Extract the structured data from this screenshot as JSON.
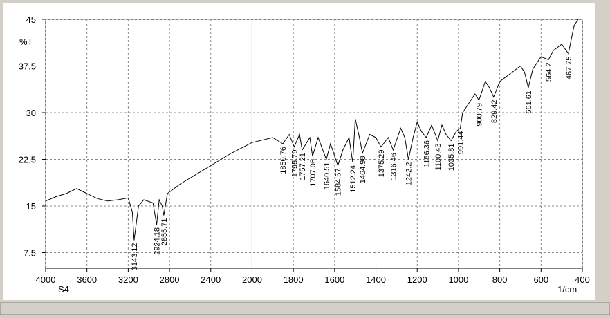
{
  "chart_data": {
    "type": "line",
    "sample": "S4",
    "y_label": "%T",
    "x_label": "1/cm",
    "color": "#000000",
    "grid": true,
    "x_reversed": true,
    "x_break": 2000,
    "xlim": [
      4000,
      400
    ],
    "ylim": [
      5,
      45
    ],
    "xticks": [
      4000,
      3600,
      3200,
      2800,
      2400,
      2000,
      1800,
      1600,
      1400,
      1200,
      1000,
      800,
      600,
      400
    ],
    "yticks": [
      7.5,
      15,
      22.5,
      30,
      37.5,
      45
    ],
    "x": [
      4000,
      3900,
      3800,
      3700,
      3600,
      3500,
      3400,
      3300,
      3200,
      3160,
      3143.12,
      3100,
      3050,
      2960,
      2924.18,
      2900,
      2870,
      2855.71,
      2820,
      2700,
      2600,
      2400,
      2200,
      2000,
      1900,
      1850.76,
      1820,
      1795.79,
      1770,
      1757.21,
      1720,
      1707.06,
      1680,
      1640.51,
      1620,
      1584.57,
      1560,
      1530,
      1512.24,
      1500,
      1480,
      1464.98,
      1430,
      1400,
      1375.29,
      1340,
      1316.46,
      1280,
      1260,
      1242.2,
      1220,
      1200,
      1180,
      1156.36,
      1130,
      1100.43,
      1080,
      1060,
      1035.81,
      1010,
      991.44,
      980,
      950,
      920,
      900.79,
      870,
      850,
      829.42,
      800,
      760,
      700,
      680,
      661.61,
      640,
      600,
      564.2,
      540,
      500,
      467.75,
      440,
      420
    ],
    "values": [
      15.8,
      16.5,
      17,
      17.8,
      17,
      16.2,
      15.8,
      16,
      16.3,
      14,
      9.5,
      15,
      16,
      15.5,
      12,
      16,
      15,
      13.5,
      17,
      18.5,
      19.5,
      21.5,
      23.5,
      25.2,
      26,
      25,
      26.5,
      24.5,
      26.5,
      24,
      26,
      23,
      26,
      22.5,
      25,
      21.5,
      24,
      26,
      22,
      29,
      26,
      23.5,
      26.5,
      26,
      24.5,
      26,
      24,
      27.5,
      26,
      22.5,
      26,
      28.5,
      27,
      26,
      28,
      25.5,
      28,
      26.5,
      25.5,
      27,
      27.5,
      30,
      31.5,
      33,
      32,
      35,
      34,
      32.5,
      35,
      36,
      37.5,
      36.5,
      34,
      37,
      39,
      38.5,
      40,
      41,
      39.5,
      44,
      45
    ],
    "peaks": [
      3143.12,
      2924.18,
      2855.71,
      1850.76,
      1795.79,
      1757.21,
      1707.06,
      1640.51,
      1584.57,
      1512.24,
      1464.98,
      1375.29,
      1316.46,
      1242.2,
      1156.36,
      1100.43,
      1035.81,
      991.44,
      900.79,
      829.42,
      661.61,
      564.2,
      467.75
    ]
  }
}
